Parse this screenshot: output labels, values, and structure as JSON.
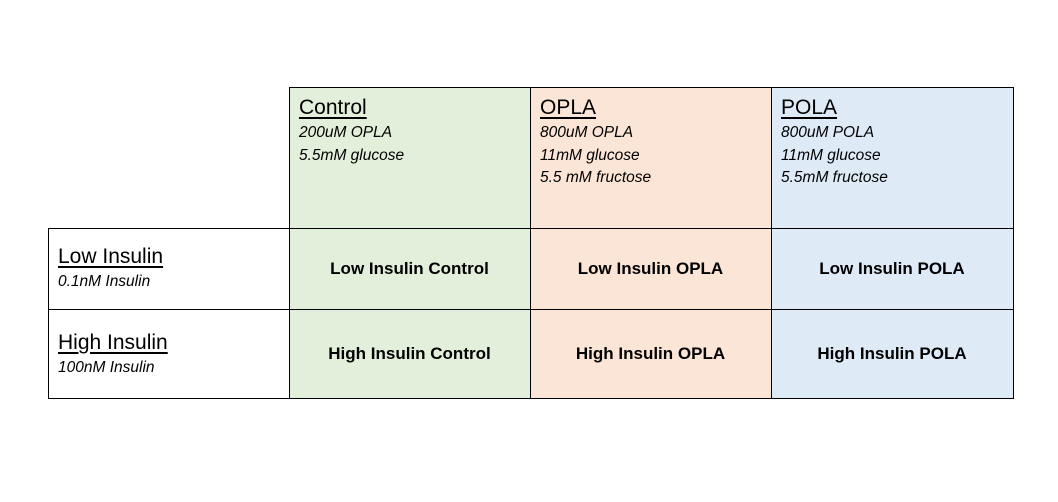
{
  "columns": [
    {
      "key": "control",
      "title": "Control",
      "lines": [
        "200uM OPLA",
        "5.5mM glucose"
      ],
      "color": "#e2efda"
    },
    {
      "key": "opla",
      "title": "OPLA",
      "lines": [
        "800uM OPLA",
        "11mM glucose",
        "5.5 mM fructose"
      ],
      "color": "#fbe5d6"
    },
    {
      "key": "pola",
      "title": "POLA",
      "lines": [
        "800uM POLA",
        "11mM glucose",
        "5.5mM fructose"
      ],
      "color": "#deebf7"
    }
  ],
  "rows": [
    {
      "title": "Low Insulin",
      "subtitle": "0.1nM Insulin",
      "cells": [
        "Low Insulin Control",
        "Low Insulin OPLA",
        "Low Insulin POLA"
      ]
    },
    {
      "title": "High Insulin",
      "subtitle": "100nM Insulin",
      "cells": [
        "High Insulin Control",
        "High Insulin OPLA",
        "High Insulin POLA"
      ]
    }
  ]
}
